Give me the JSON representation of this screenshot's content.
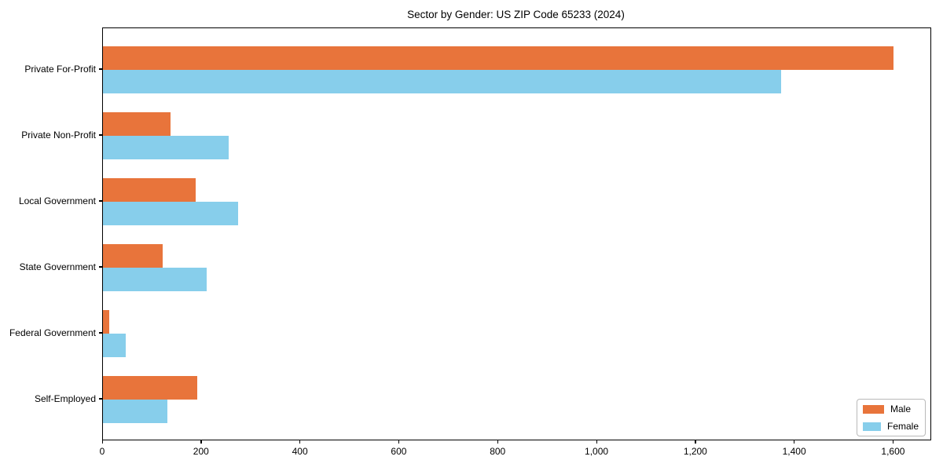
{
  "title": "Sector by Gender: US ZIP Code 65233 (2024)",
  "colors": {
    "male_bar": "#e8743b",
    "female_bar": "#87ceeb",
    "axis": "#000000",
    "legend_border": "#b9b9b9",
    "background": "#ffffff"
  },
  "chart_data": {
    "type": "bar",
    "orientation": "horizontal",
    "title": "Sector by Gender: US ZIP Code 65233 (2024)",
    "xlabel": "",
    "ylabel": "",
    "grid": false,
    "xlim": [
      0,
      1674
    ],
    "xticks": [
      0,
      200,
      400,
      600,
      800,
      1000,
      1200,
      1400,
      1600
    ],
    "xtick_labels": [
      "0",
      "200",
      "400",
      "600",
      "800",
      "1,000",
      "1,200",
      "1,400",
      "1,600"
    ],
    "categories": [
      "Private For-Profit",
      "Private Non-Profit",
      "Local Government",
      "State Government",
      "Federal Government",
      "Self-Employed"
    ],
    "series": [
      {
        "name": "Male",
        "color": "#e8743b",
        "values": [
          1600,
          137,
          188,
          121,
          12,
          190
        ]
      },
      {
        "name": "Female",
        "color": "#87ceeb",
        "values": [
          1372,
          255,
          273,
          210,
          46,
          130
        ]
      }
    ],
    "legend": {
      "position": "lower right",
      "entries": [
        "Male",
        "Female"
      ]
    }
  }
}
